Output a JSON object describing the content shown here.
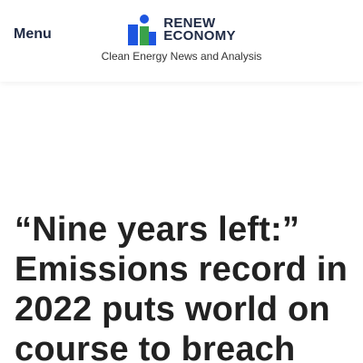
{
  "header": {
    "menu_label": "Menu",
    "logo": {
      "line1": "RENEW",
      "line2": "ECONOMY",
      "colors": {
        "blue": "#1e56e0",
        "green": "#3aa24a",
        "text": "#1f2a44"
      }
    },
    "tagline": "Clean Energy News and Analysis"
  },
  "article": {
    "title": "“Nine years left:” Emissions record in 2022 puts world on course to breach"
  }
}
